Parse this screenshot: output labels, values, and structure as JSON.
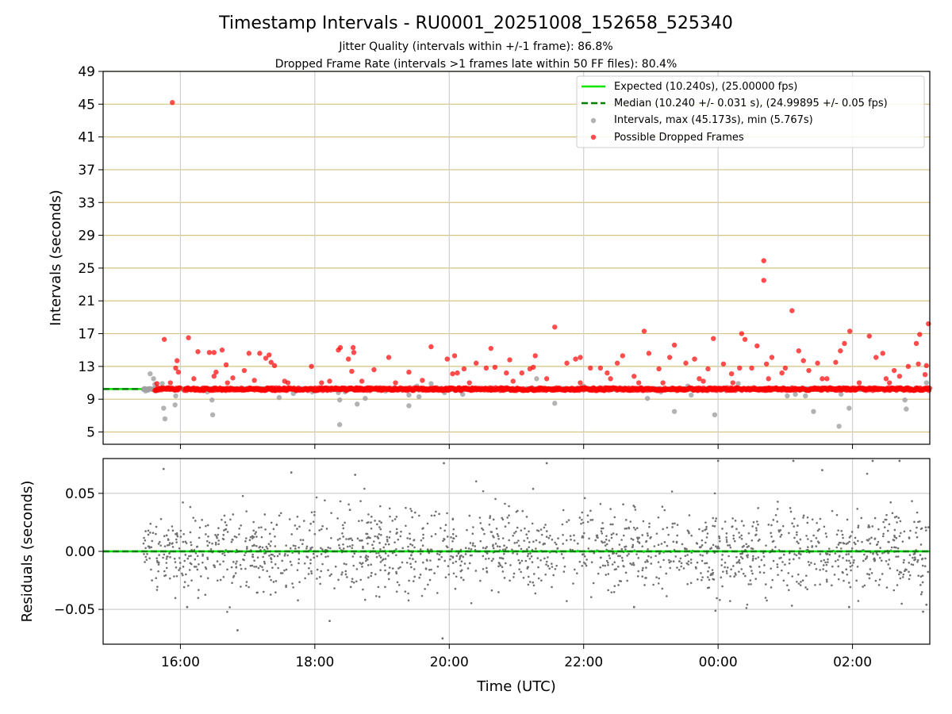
{
  "title": "Timestamp Intervals - RU0001_20251008_152658_525340",
  "subtitle_1": "Jitter Quality (intervals within +/-1 frame): 86.8%",
  "subtitle_2": "Dropped Frame Rate (intervals >1 frames late within 50 FF files): 80.4%",
  "colors": {
    "expected": "#00e600",
    "median": "#008000",
    "intervals": "#a0a0a0",
    "dropped": "#ff0000",
    "residuals": "#707070",
    "grid_main": "#d4c483",
    "grid_minor": "#cfcfcf"
  },
  "chart_data": [
    {
      "type": "scatter",
      "id": "intervals",
      "xlabel": "",
      "ylabel": "Intervals (seconds)",
      "xlim_hours": [
        14.85,
        27.15
      ],
      "ylim": [
        3.5,
        49
      ],
      "yticks": [
        "5",
        "9",
        "13",
        "17",
        "21",
        "25",
        "29",
        "33",
        "37",
        "41",
        "45",
        "49"
      ],
      "ytick_values": [
        5,
        9,
        13,
        17,
        21,
        25,
        29,
        33,
        37,
        41,
        45,
        49
      ],
      "expected_value": 10.24,
      "median_value": 10.24,
      "baseline_start_hour": 15.45,
      "baseline_end_hour": 27.15,
      "legend": {
        "position": "top-right",
        "expected": "Expected (10.240s), (25.00000 fps)",
        "median": "Median (10.240 +/- 0.031 s), (24.99895 +/- 0.05 fps)",
        "intervals": "Intervals, max (45.173s), min (5.767s)",
        "dropped": "Possible Dropped Frames"
      },
      "intervals_series": [
        [
          15.55,
          12.1
        ],
        [
          15.6,
          11.5
        ],
        [
          15.62,
          10.8
        ],
        [
          15.73,
          10.9
        ],
        [
          15.75,
          7.9
        ],
        [
          15.77,
          6.6
        ],
        [
          15.93,
          9.4
        ],
        [
          15.92,
          8.3
        ],
        [
          16.4,
          9.9
        ],
        [
          16.47,
          8.9
        ],
        [
          16.48,
          7.1
        ],
        [
          17.47,
          9.2
        ],
        [
          17.68,
          9.7
        ],
        [
          17.96,
          9.9
        ],
        [
          18.35,
          9.8
        ],
        [
          18.37,
          8.9
        ],
        [
          18.37,
          5.9
        ],
        [
          18.63,
          8.4
        ],
        [
          18.75,
          9.1
        ],
        [
          19.18,
          10.4
        ],
        [
          19.4,
          8.2
        ],
        [
          19.4,
          9.5
        ],
        [
          19.52,
          10.6
        ],
        [
          19.55,
          9.3
        ],
        [
          19.73,
          10.9
        ],
        [
          19.93,
          9.8
        ],
        [
          20.2,
          9.6
        ],
        [
          20.45,
          10.2
        ],
        [
          21.3,
          11.5
        ],
        [
          21.57,
          8.5
        ],
        [
          22.0,
          10.6
        ],
        [
          22.95,
          9.1
        ],
        [
          23.15,
          9.9
        ],
        [
          23.35,
          7.5
        ],
        [
          23.55,
          10.6
        ],
        [
          23.6,
          9.5
        ],
        [
          23.95,
          7.1
        ],
        [
          24.3,
          10.9
        ],
        [
          25.03,
          9.4
        ],
        [
          25.15,
          9.6
        ],
        [
          25.3,
          9.4
        ],
        [
          25.42,
          7.5
        ],
        [
          25.8,
          5.7
        ],
        [
          25.83,
          9.6
        ],
        [
          25.95,
          7.9
        ],
        [
          26.78,
          8.9
        ],
        [
          26.8,
          7.8
        ],
        [
          27.1,
          11.0
        ],
        [
          15.48,
          10.0
        ],
        [
          15.52,
          10.1
        ],
        [
          15.64,
          10.0
        ],
        [
          17.72,
          10.0
        ],
        [
          18.0,
          10.0
        ],
        [
          18.45,
          9.9
        ],
        [
          19.05,
          10.0
        ],
        [
          20.62,
          10.1
        ]
      ],
      "dropped_series": [
        [
          15.88,
          45.2
        ],
        [
          15.76,
          16.3
        ],
        [
          15.97,
          12.3
        ],
        [
          15.95,
          13.7
        ],
        [
          15.93,
          12.8
        ],
        [
          16.12,
          16.5
        ],
        [
          16.26,
          14.8
        ],
        [
          16.43,
          14.7
        ],
        [
          16.5,
          14.7
        ],
        [
          16.53,
          12.3
        ],
        [
          16.5,
          11.8
        ],
        [
          16.62,
          15.0
        ],
        [
          16.68,
          13.2
        ],
        [
          16.78,
          11.6
        ],
        [
          16.95,
          12.5
        ],
        [
          17.02,
          14.6
        ],
        [
          17.18,
          14.6
        ],
        [
          17.27,
          14.0
        ],
        [
          17.32,
          14.4
        ],
        [
          17.35,
          13.5
        ],
        [
          17.4,
          13.1
        ],
        [
          17.55,
          11.2
        ],
        [
          17.95,
          13.0
        ],
        [
          18.22,
          11.2
        ],
        [
          18.35,
          15.0
        ],
        [
          18.38,
          15.3
        ],
        [
          18.5,
          13.9
        ],
        [
          18.55,
          12.4
        ],
        [
          18.57,
          15.3
        ],
        [
          18.58,
          14.7
        ],
        [
          18.88,
          12.6
        ],
        [
          19.1,
          14.1
        ],
        [
          19.4,
          12.3
        ],
        [
          19.73,
          15.4
        ],
        [
          19.97,
          13.9
        ],
        [
          20.08,
          14.3
        ],
        [
          20.05,
          12.1
        ],
        [
          20.12,
          12.2
        ],
        [
          20.22,
          12.7
        ],
        [
          20.4,
          13.4
        ],
        [
          20.62,
          15.2
        ],
        [
          20.55,
          12.8
        ],
        [
          20.68,
          12.9
        ],
        [
          20.85,
          12.2
        ],
        [
          20.9,
          13.8
        ],
        [
          21.08,
          12.2
        ],
        [
          21.2,
          12.7
        ],
        [
          21.25,
          12.9
        ],
        [
          21.28,
          14.3
        ],
        [
          21.57,
          17.8
        ],
        [
          21.75,
          13.4
        ],
        [
          21.88,
          13.9
        ],
        [
          21.95,
          14.1
        ],
        [
          22.1,
          12.8
        ],
        [
          22.25,
          12.8
        ],
        [
          22.35,
          12.2
        ],
        [
          22.5,
          13.4
        ],
        [
          22.58,
          14.3
        ],
        [
          22.75,
          11.8
        ],
        [
          22.9,
          17.3
        ],
        [
          22.97,
          14.6
        ],
        [
          23.12,
          12.7
        ],
        [
          23.28,
          14.1
        ],
        [
          23.35,
          15.6
        ],
        [
          23.52,
          13.4
        ],
        [
          23.65,
          13.9
        ],
        [
          23.72,
          11.5
        ],
        [
          23.85,
          12.7
        ],
        [
          23.93,
          16.4
        ],
        [
          24.08,
          13.3
        ],
        [
          24.2,
          12.1
        ],
        [
          24.32,
          12.8
        ],
        [
          24.35,
          17.0
        ],
        [
          24.4,
          16.3
        ],
        [
          24.5,
          12.8
        ],
        [
          24.58,
          15.5
        ],
        [
          24.68,
          23.5
        ],
        [
          24.68,
          25.9
        ],
        [
          24.72,
          13.3
        ],
        [
          24.8,
          14.1
        ],
        [
          24.95,
          12.2
        ],
        [
          25.1,
          19.8
        ],
        [
          25.2,
          14.9
        ],
        [
          25.27,
          13.7
        ],
        [
          25.35,
          12.5
        ],
        [
          25.48,
          13.4
        ],
        [
          25.55,
          11.5
        ],
        [
          25.75,
          13.5
        ],
        [
          25.82,
          14.9
        ],
        [
          25.88,
          15.8
        ],
        [
          25.96,
          17.3
        ],
        [
          26.25,
          16.7
        ],
        [
          26.35,
          14.1
        ],
        [
          26.45,
          14.6
        ],
        [
          26.62,
          12.5
        ],
        [
          26.83,
          13.0
        ],
        [
          26.95,
          15.8
        ],
        [
          27.0,
          16.9
        ],
        [
          27.13,
          18.2
        ],
        [
          27.1,
          13.1
        ],
        [
          26.98,
          13.3
        ],
        [
          26.7,
          11.8
        ],
        [
          26.5,
          11.5
        ],
        [
          26.1,
          11.0
        ],
        [
          25.62,
          11.5
        ],
        [
          25.0,
          12.8
        ],
        [
          24.75,
          11.5
        ],
        [
          24.22,
          11.0
        ],
        [
          23.78,
          11.2
        ],
        [
          23.18,
          11.0
        ],
        [
          22.82,
          11.0
        ],
        [
          22.4,
          11.5
        ],
        [
          21.95,
          11.0
        ],
        [
          21.45,
          11.5
        ],
        [
          20.95,
          11.2
        ],
        [
          20.3,
          11.0
        ],
        [
          19.6,
          11.3
        ],
        [
          19.2,
          11.0
        ],
        [
          18.7,
          11.2
        ],
        [
          18.1,
          11.0
        ],
        [
          17.6,
          11.0
        ],
        [
          17.1,
          11.3
        ],
        [
          16.7,
          11.0
        ],
        [
          16.2,
          11.5
        ],
        [
          15.85,
          11.0
        ],
        [
          15.65,
          10.9
        ],
        [
          26.55,
          11.0
        ],
        [
          27.08,
          12.0
        ]
      ]
    },
    {
      "type": "scatter",
      "id": "residuals",
      "xlabel": "Time (UTC)",
      "ylabel": "Residuals (seconds)",
      "xlim_hours": [
        14.85,
        27.15
      ],
      "ylim": [
        -0.08,
        0.08
      ],
      "yticks": [
        "−0.05",
        "0.00",
        "0.05"
      ],
      "ytick_values": [
        -0.05,
        0.0,
        0.05
      ],
      "xticks": [
        "16:00",
        "18:00",
        "20:00",
        "22:00",
        "00:00",
        "02:00"
      ],
      "xtick_hours": [
        16,
        18,
        20,
        22,
        24,
        26
      ],
      "residual_start_hour": 15.45,
      "residual_end_hour": 27.15,
      "residual_count": 1700,
      "residual_std": 0.018,
      "residual_outliers": [
        [
          15.75,
          0.071
        ],
        [
          16.85,
          -0.068
        ],
        [
          18.22,
          -0.06
        ],
        [
          19.92,
          0.076
        ],
        [
          19.9,
          -0.075
        ],
        [
          21.45,
          0.076
        ],
        [
          24.0,
          0.078
        ],
        [
          25.12,
          0.078
        ],
        [
          26.3,
          0.078
        ],
        [
          26.7,
          0.078
        ],
        [
          27.05,
          -0.052
        ],
        [
          17.65,
          0.068
        ],
        [
          16.1,
          -0.048
        ],
        [
          18.6,
          0.066
        ],
        [
          22.75,
          -0.048
        ],
        [
          25.95,
          -0.048
        ],
        [
          25.55,
          0.07
        ],
        [
          27.1,
          -0.046
        ]
      ]
    }
  ]
}
